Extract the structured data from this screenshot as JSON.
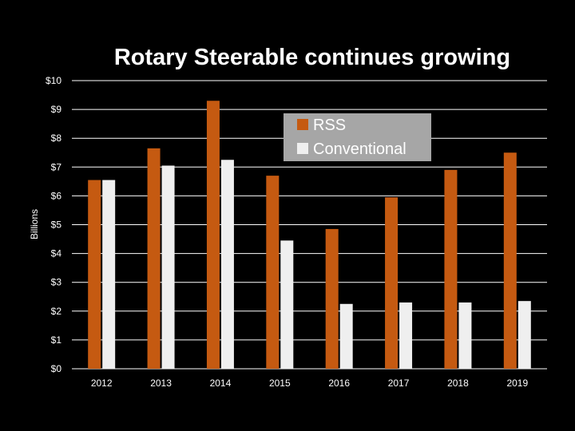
{
  "chart_data": {
    "type": "bar",
    "title": "Rotary Steerable continues growing",
    "ylabel": "Billions",
    "xlabel": "",
    "categories": [
      "2012",
      "2013",
      "2014",
      "2015",
      "2016",
      "2017",
      "2018",
      "2019"
    ],
    "series": [
      {
        "name": "RSS",
        "values": [
          6.55,
          7.65,
          9.3,
          6.7,
          4.85,
          5.95,
          6.9,
          7.5
        ]
      },
      {
        "name": "Conventional",
        "values": [
          6.55,
          7.05,
          7.25,
          4.45,
          2.25,
          2.3,
          2.3,
          2.35
        ]
      }
    ],
    "ylim": [
      0,
      10
    ],
    "yticks": [
      0,
      1,
      2,
      3,
      4,
      5,
      6,
      7,
      8,
      9,
      10
    ],
    "ytick_labels": [
      "$0",
      "$1",
      "$2",
      "$3",
      "$4",
      "$5",
      "$6",
      "$7",
      "$8",
      "$9",
      "$10"
    ],
    "grid": true,
    "legend_position": "top-right",
    "colors": {
      "background": "#000000",
      "text": "#ffffff",
      "grid": "#ffffff",
      "RSS": "#c55a11",
      "Conventional": "#efefef",
      "legend_background": "#a6a6a6"
    }
  }
}
